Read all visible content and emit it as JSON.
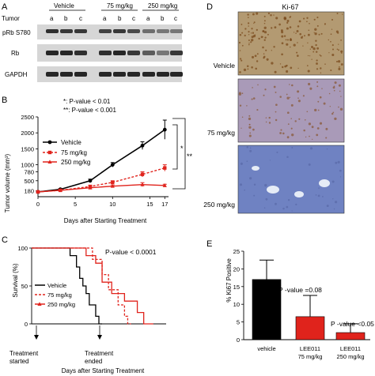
{
  "panel_a": {
    "letter": "A",
    "tumor_label": "Tumor",
    "groups": [
      "Vehicle",
      "75 mg/kg",
      "250 mg/kg"
    ],
    "lane_letters": [
      "a",
      "b",
      "c",
      "a",
      "b",
      "c",
      "a",
      "b",
      "c"
    ],
    "blots": [
      {
        "label": "pRb S780",
        "intensities": [
          0.85,
          0.8,
          0.8,
          0.75,
          0.8,
          0.7,
          0.5,
          0.45,
          0.45
        ]
      },
      {
        "label": "Rb",
        "intensities": [
          0.9,
          0.9,
          0.85,
          0.85,
          0.9,
          0.8,
          0.6,
          0.45,
          0.8
        ]
      },
      {
        "label": "GAPDH",
        "intensities": [
          0.9,
          0.9,
          0.9,
          0.9,
          0.9,
          0.9,
          0.9,
          0.9,
          0.9
        ]
      }
    ]
  },
  "panel_b": {
    "letter": "B",
    "pval_1": "*: P-value < 0.01",
    "pval_2": "**: P-value < 0.001",
    "sig_1": "*",
    "sig_2": "**",
    "ylabel": "Tumor volume (mm³)",
    "xlabel": "Days after Starting Treatment"
  },
  "panel_c": {
    "letter": "C",
    "pval": "P-value < 0.0001",
    "ylabel": "Survival (%)",
    "xlabel": "Days after Starting Treatment",
    "started": "Treatment started",
    "ended": "Treatment ended"
  },
  "panel_d": {
    "letter": "D",
    "title": "Ki-67",
    "rows": [
      {
        "label": "Vehicle",
        "bg": "#b39a72",
        "dot": "#7a4a1c",
        "density": 180
      },
      {
        "label": "75 mg/kg",
        "bg": "#a99ab8",
        "dot": "#8a5a3a",
        "density": 90
      },
      {
        "label": "250 mg/kg",
        "bg": "#6f82c2",
        "dot": "#5a6aa8",
        "density": 40
      }
    ]
  },
  "panel_e": {
    "letter": "E",
    "ylabel": "% Ki67 Positive",
    "annot_1": "P -value =0.08",
    "annot_2": "P -value <0.05"
  },
  "chart_data": [
    {
      "type": "line",
      "id": "tumor_volume",
      "x": [
        0,
        3,
        7,
        10,
        14,
        17
      ],
      "series": [
        {
          "name": "Vehicle",
          "color": "#000000",
          "values": [
            150,
            230,
            500,
            1000,
            1600,
            2100
          ],
          "err": [
            20,
            30,
            50,
            70,
            120,
            300
          ]
        },
        {
          "name": "75 mg/kg",
          "color": "#e0231c",
          "values": [
            150,
            200,
            320,
            450,
            700,
            900
          ],
          "err": [
            20,
            25,
            40,
            50,
            80,
            100
          ]
        },
        {
          "name": "250 mg/kg",
          "color": "#e0231c",
          "values": [
            150,
            200,
            280,
            330,
            380,
            350
          ],
          "err": [
            20,
            25,
            30,
            40,
            60,
            40
          ]
        }
      ],
      "xticks": [
        0,
        5,
        10,
        15,
        17
      ],
      "yticks": [
        180,
        500,
        780,
        1000,
        1500,
        2000,
        2500
      ],
      "ytick_labels": [
        "180",
        "500",
        "780",
        "1000",
        "1500",
        "2000",
        "2500"
      ],
      "xlim": [
        0,
        17.5
      ],
      "ylim": [
        0,
        2500
      ]
    },
    {
      "type": "line",
      "id": "survival",
      "series": [
        {
          "name": "Vehicle",
          "color": "#000000",
          "steps": [
            [
              0,
              100
            ],
            [
              12,
              100
            ],
            [
              12,
              90
            ],
            [
              14,
              90
            ],
            [
              14,
              75
            ],
            [
              15,
              75
            ],
            [
              15,
              60
            ],
            [
              16,
              60
            ],
            [
              16,
              50
            ],
            [
              17,
              50
            ],
            [
              17,
              40
            ],
            [
              18,
              40
            ],
            [
              18,
              25
            ],
            [
              20,
              25
            ],
            [
              20,
              10
            ],
            [
              21,
              10
            ],
            [
              21,
              0
            ],
            [
              22,
              0
            ]
          ]
        },
        {
          "name": "75 mg/kg",
          "color": "#e0231c",
          "steps": [
            [
              0,
              100
            ],
            [
              19,
              100
            ],
            [
              19,
              85
            ],
            [
              22,
              85
            ],
            [
              22,
              65
            ],
            [
              24,
              65
            ],
            [
              24,
              45
            ],
            [
              27,
              45
            ],
            [
              27,
              25
            ],
            [
              29,
              25
            ],
            [
              29,
              10
            ],
            [
              30,
              10
            ],
            [
              30,
              0
            ],
            [
              31,
              0
            ]
          ]
        },
        {
          "name": "250 mg/kg",
          "color": "#e0231c",
          "steps": [
            [
              0,
              100
            ],
            [
              17,
              100
            ],
            [
              17,
              90
            ],
            [
              20,
              90
            ],
            [
              20,
              80
            ],
            [
              22,
              80
            ],
            [
              22,
              55
            ],
            [
              25,
              55
            ],
            [
              25,
              40
            ],
            [
              29,
              40
            ],
            [
              29,
              30
            ],
            [
              33,
              30
            ],
            [
              33,
              15
            ],
            [
              35,
              15
            ],
            [
              35,
              0
            ],
            [
              38,
              0
            ]
          ]
        }
      ],
      "xlim": [
        0,
        42
      ],
      "ylim": [
        0,
        100
      ],
      "yticks": [
        0,
        50,
        100
      ]
    },
    {
      "type": "bar",
      "id": "ki67",
      "categories": [
        "vehicle",
        "LEE011\n75 mg/kg",
        "LEE011\n250 mg/kg"
      ],
      "values": [
        17,
        6.5,
        2
      ],
      "err": [
        5.5,
        6,
        2.5
      ],
      "colors": [
        "#000000",
        "#e0231c",
        "#e0231c"
      ],
      "yticks": [
        0,
        5,
        10,
        15,
        20,
        25
      ],
      "ylim": [
        0,
        25
      ]
    }
  ]
}
